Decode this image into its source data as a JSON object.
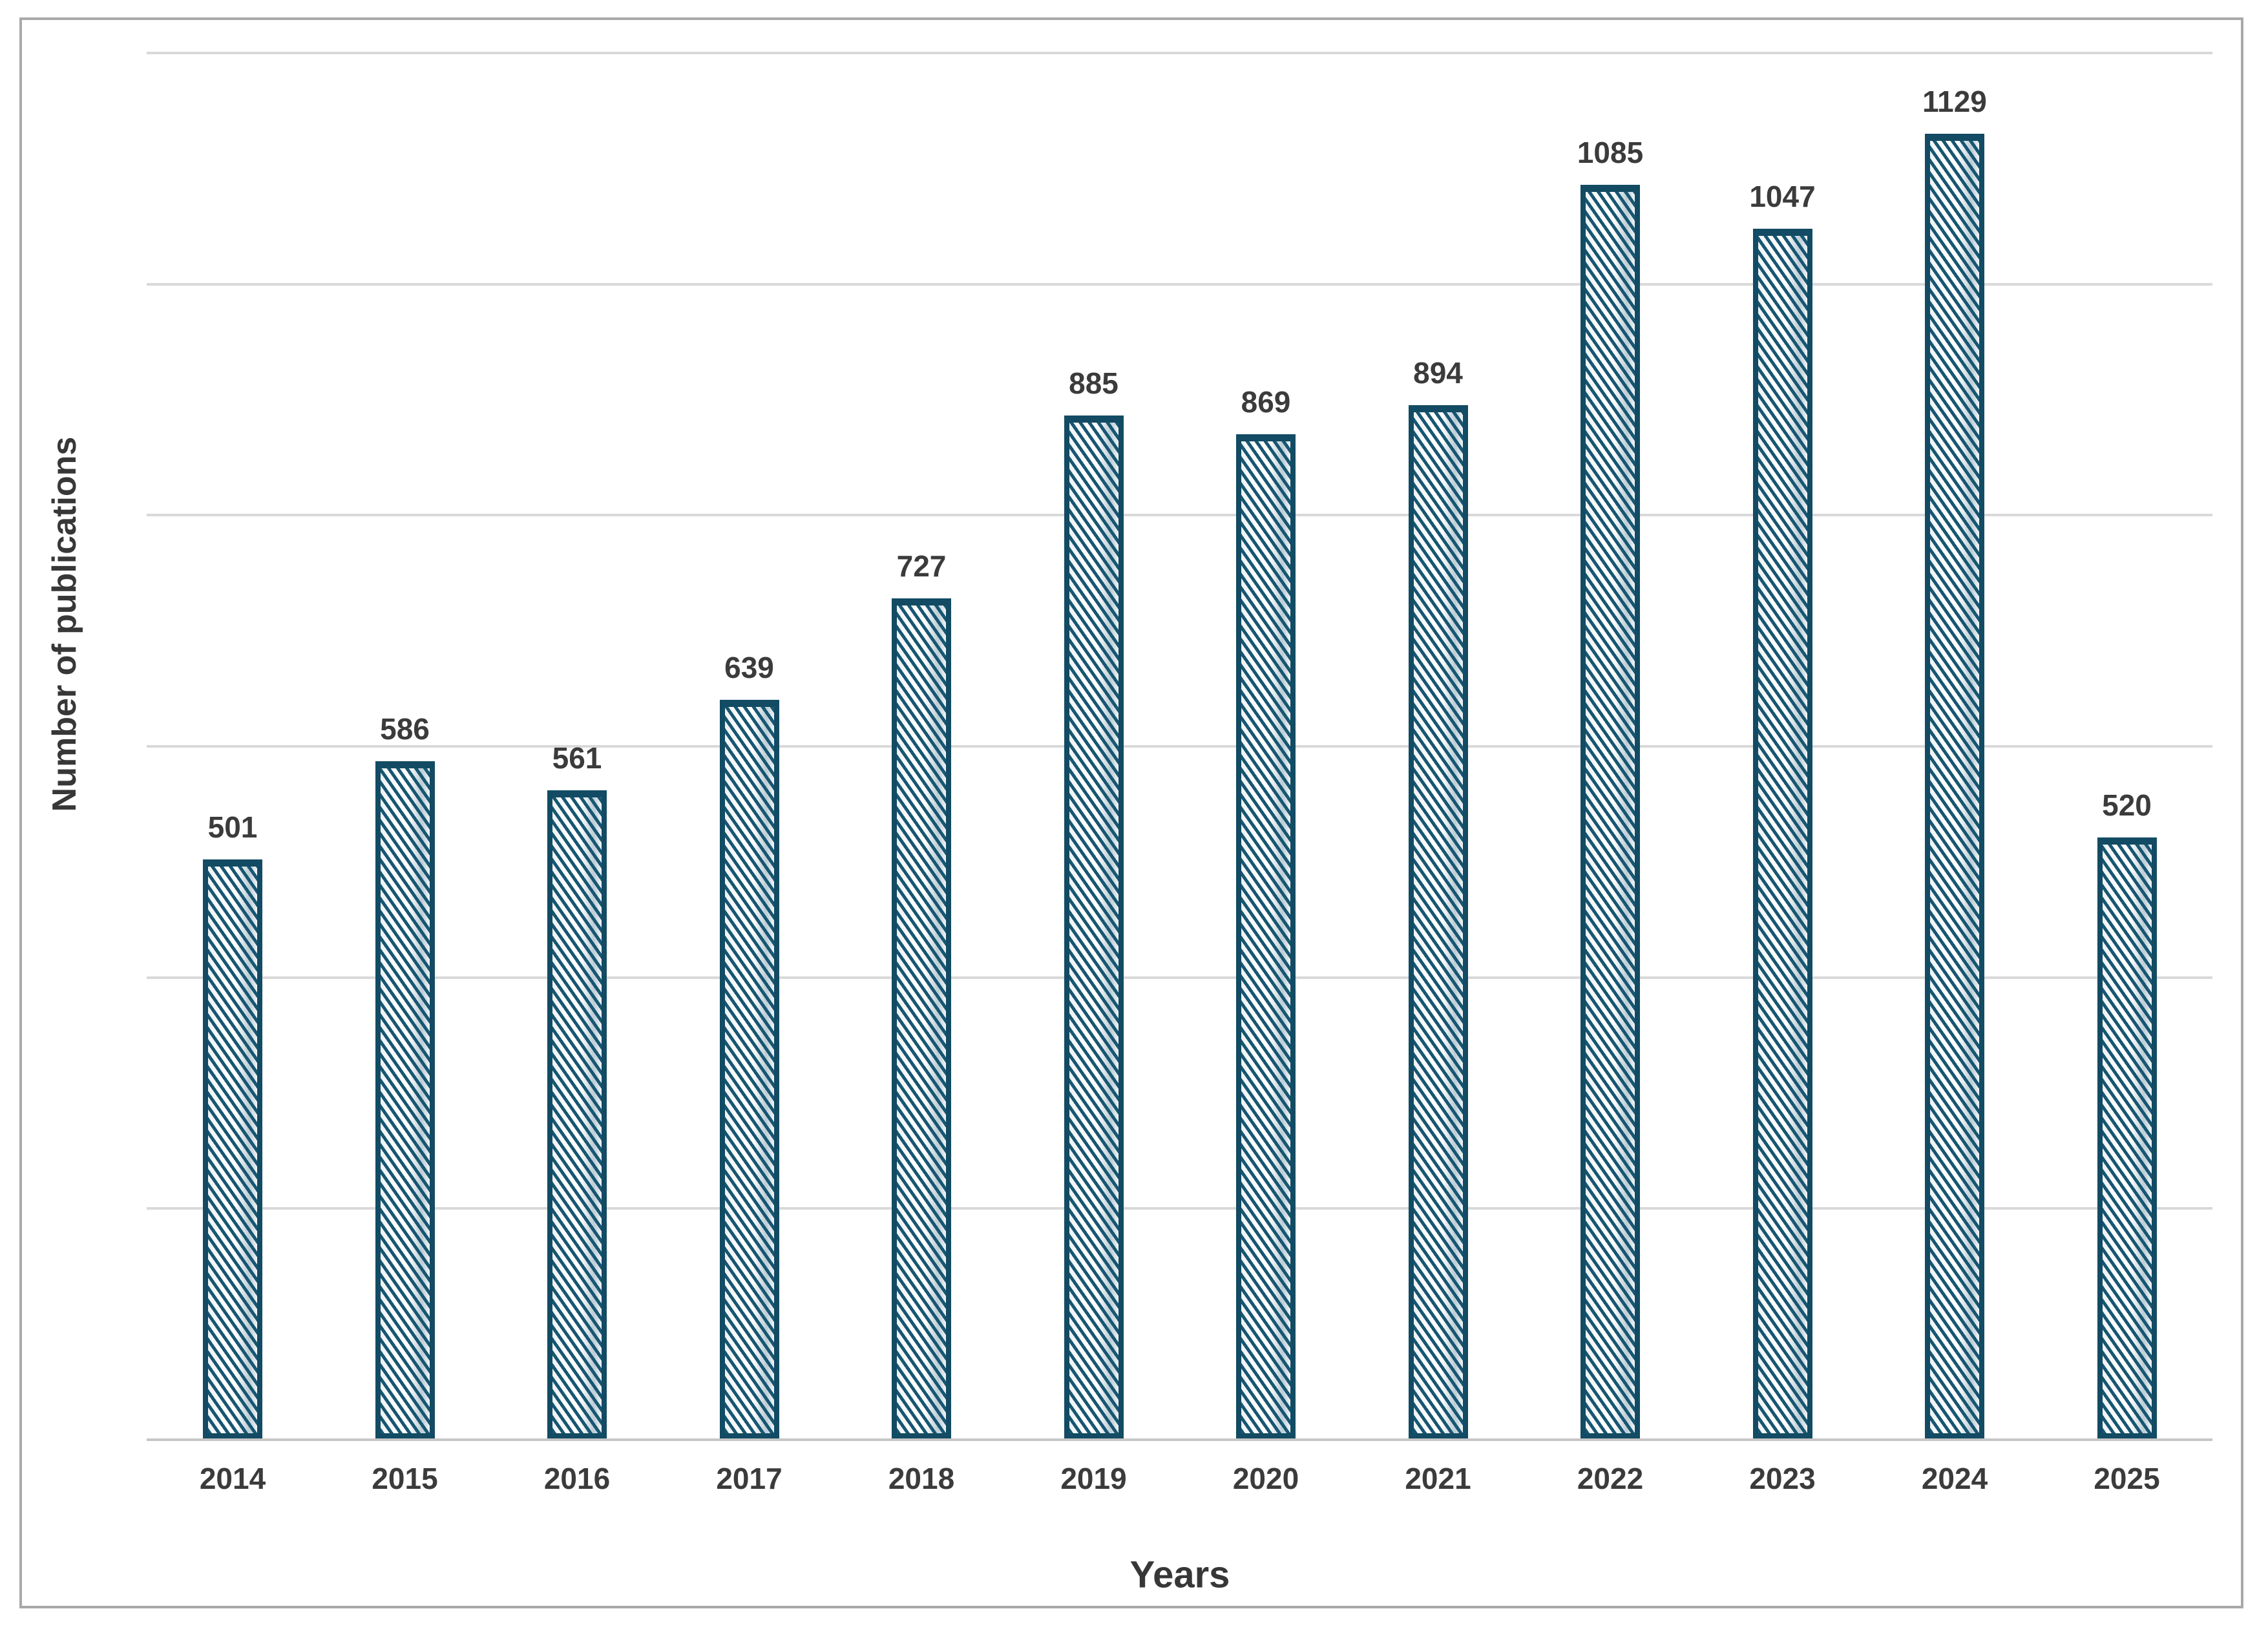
{
  "chart_data": {
    "type": "bar",
    "title": "",
    "xlabel": "Years",
    "ylabel": "Number of publications",
    "categories": [
      "2014",
      "2015",
      "2016",
      "2017",
      "2018",
      "2019",
      "2020",
      "2021",
      "2022",
      "2023",
      "2024",
      "2025"
    ],
    "values": [
      501,
      586,
      561,
      639,
      727,
      885,
      869,
      894,
      1085,
      1047,
      1129,
      520
    ],
    "data_labels_shown": true,
    "ylim": [
      0,
      1200
    ],
    "gridline_step": 200,
    "y_tick_labels_shown": false,
    "grid": "horizontal",
    "legend": "none",
    "colors": {
      "bar_border": "#124b63",
      "bar_hatch": "#175672",
      "bar_fill_light": "#ffffff",
      "bar_fill_sheen": "#bccdd6",
      "gridline": "#d9d9d9",
      "axis_line": "#c6c6c6",
      "frame_border": "#a9a9a9",
      "label_text": "#3b3b3b",
      "axis_title_text": "#373737",
      "background": "#ffffff"
    },
    "bar_hatch_style": "diagonal-down-stripes"
  }
}
